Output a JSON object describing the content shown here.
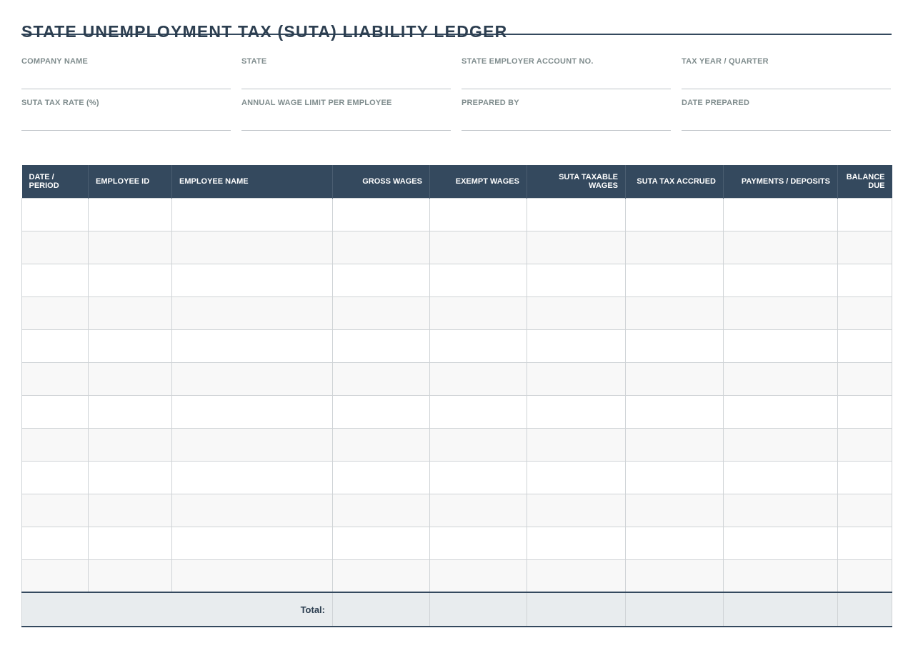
{
  "title": "STATE UNEMPLOYMENT TAX (SUTA) LIABILITY LEDGER",
  "meta_fields": [
    {
      "label": "COMPANY NAME",
      "value": ""
    },
    {
      "label": "STATE",
      "value": ""
    },
    {
      "label": "STATE EMPLOYER ACCOUNT NO.",
      "value": ""
    },
    {
      "label": "TAX YEAR / QUARTER",
      "value": ""
    },
    {
      "label": "SUTA TAX RATE (%)",
      "value": ""
    },
    {
      "label": "ANNUAL WAGE LIMIT PER EMPLOYEE",
      "value": ""
    },
    {
      "label": "PREPARED BY",
      "value": ""
    },
    {
      "label": "DATE PREPARED",
      "value": ""
    }
  ],
  "table": {
    "columns": [
      {
        "label_line1": "DATE /",
        "label_line2": "PERIOD",
        "align": "left"
      },
      {
        "label_line1": "EMPLOYEE ID",
        "label_line2": "",
        "align": "left"
      },
      {
        "label_line1": "EMPLOYEE NAME",
        "label_line2": "",
        "align": "left"
      },
      {
        "label_line1": "GROSS WAGES",
        "label_line2": "",
        "align": "right"
      },
      {
        "label_line1": "EXEMPT WAGES",
        "label_line2": "",
        "align": "right"
      },
      {
        "label_line1": "SUTA TAXABLE",
        "label_line2": "WAGES",
        "align": "right"
      },
      {
        "label_line1": "SUTA TAX ACCRUED",
        "label_line2": "",
        "align": "right"
      },
      {
        "label_line1": "PAYMENTS / DEPOSITS",
        "label_line2": "",
        "align": "right"
      },
      {
        "label_line1": "BALANCE",
        "label_line2": "DUE",
        "align": "right"
      }
    ],
    "rows": [
      [
        "",
        "",
        "",
        "",
        "",
        "",
        "",
        "",
        ""
      ],
      [
        "",
        "",
        "",
        "",
        "",
        "",
        "",
        "",
        ""
      ],
      [
        "",
        "",
        "",
        "",
        "",
        "",
        "",
        "",
        ""
      ],
      [
        "",
        "",
        "",
        "",
        "",
        "",
        "",
        "",
        ""
      ],
      [
        "",
        "",
        "",
        "",
        "",
        "",
        "",
        "",
        ""
      ],
      [
        "",
        "",
        "",
        "",
        "",
        "",
        "",
        "",
        ""
      ],
      [
        "",
        "",
        "",
        "",
        "",
        "",
        "",
        "",
        ""
      ],
      [
        "",
        "",
        "",
        "",
        "",
        "",
        "",
        "",
        ""
      ],
      [
        "",
        "",
        "",
        "",
        "",
        "",
        "",
        "",
        ""
      ],
      [
        "",
        "",
        "",
        "",
        "",
        "",
        "",
        "",
        ""
      ],
      [
        "",
        "",
        "",
        "",
        "",
        "",
        "",
        "",
        ""
      ],
      [
        "",
        "",
        "",
        "",
        "",
        "",
        "",
        "",
        ""
      ]
    ],
    "total_label": "Total:",
    "totals": [
      "",
      "",
      "",
      "",
      "",
      ""
    ]
  }
}
